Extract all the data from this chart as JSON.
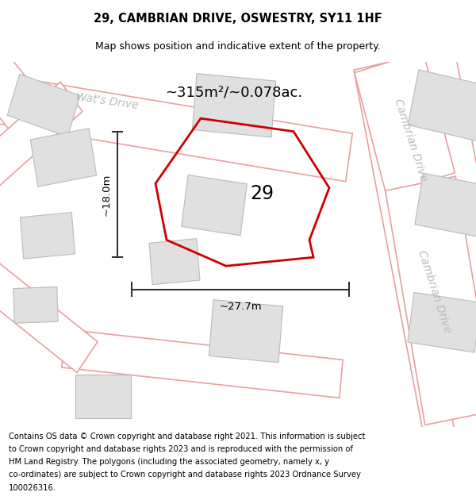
{
  "title": "29, CAMBRIAN DRIVE, OSWESTRY, SY11 1HF",
  "subtitle": "Map shows position and indicative extent of the property.",
  "footer_lines": [
    "Contains OS data © Crown copyright and database right 2021. This information is subject",
    "to Crown copyright and database rights 2023 and is reproduced with the permission of",
    "HM Land Registry. The polygons (including the associated geometry, namely x, y",
    "co-ordinates) are subject to Crown copyright and database rights 2023 Ordnance Survey",
    "100026316."
  ],
  "map_bg": "#f7f2f2",
  "road_color": "#e8a0a0",
  "road_fill": "#ffffff",
  "building_fill": "#e0e0e0",
  "building_edge": "#bbbbbb",
  "property_color": "#cc0000",
  "area_text": "~315m²/~0.078ac.",
  "width_text": "~27.7m",
  "height_text": "~18.0m",
  "number_text": "29",
  "street_label_wats": "Wat's Drive",
  "street_label_cambrian1": "Cambrian Drive",
  "street_label_cambrian2": "Cambrian Drive",
  "title_fontsize": 10.5,
  "subtitle_fontsize": 9,
  "footer_fontsize": 7.2,
  "area_fontsize": 13,
  "number_fontsize": 17,
  "dim_fontsize": 9.5,
  "street_fontsize": 10
}
